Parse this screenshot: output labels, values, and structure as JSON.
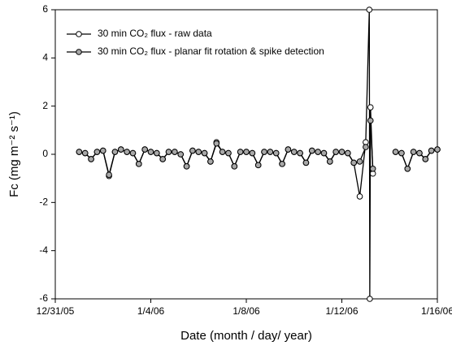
{
  "chart_data": {
    "type": "line",
    "xlabel": "Date (month / day/ year)",
    "ylabel": "Fc (mg m⁻² s⁻¹)",
    "x": [
      1,
      1.25,
      1.5,
      1.75,
      2,
      2.25,
      2.5,
      2.75,
      3,
      3.25,
      3.5,
      3.75,
      4,
      4.25,
      4.5,
      4.75,
      5,
      5.25,
      5.5,
      5.75,
      6,
      6.25,
      6.5,
      6.75,
      7,
      7.25,
      7.5,
      7.75,
      8,
      8.25,
      8.5,
      8.75,
      9,
      9.25,
      9.5,
      9.75,
      10,
      10.25,
      10.5,
      10.75,
      11,
      11.25,
      11.5,
      11.75,
      12,
      12.25,
      12.5,
      12.75,
      13,
      13.15,
      13.17,
      13.2,
      13.3,
      13.4,
      14.25,
      14.5,
      14.75,
      15,
      15.25,
      15.5,
      15.75,
      16
    ],
    "series": [
      {
        "name": "30 min CO₂ flux  - raw data",
        "color": "#ffffff",
        "values": [
          0.1,
          0.05,
          -0.2,
          0.1,
          0.15,
          -0.9,
          0.1,
          0.2,
          0.1,
          0.05,
          -0.4,
          0.2,
          0.1,
          0.05,
          -0.2,
          0.1,
          0.1,
          0,
          -0.5,
          0.15,
          0.1,
          0.05,
          -0.3,
          0.5,
          0.1,
          0.05,
          -0.5,
          0.1,
          0.1,
          0.05,
          -0.45,
          0.1,
          0.1,
          0.05,
          -0.4,
          0.2,
          0.1,
          0.05,
          -0.35,
          0.15,
          0.1,
          0.05,
          -0.3,
          0.1,
          0.1,
          0.05,
          -0.35,
          -1.75,
          0.5,
          6,
          -6,
          1.95,
          -0.8,
          null,
          0.1,
          0.05,
          -0.6,
          0.1,
          0.05,
          -0.2,
          0.15,
          0.2
        ]
      },
      {
        "name": "30 min CO₂ flux  -  planar fit rotation & spike detection",
        "color": "#a8a8a8",
        "values": [
          0.1,
          0.05,
          -0.2,
          0.1,
          0.15,
          -0.85,
          0.1,
          0.2,
          0.1,
          0.05,
          -0.4,
          0.2,
          0.1,
          0.05,
          -0.2,
          0.1,
          0.1,
          0,
          -0.5,
          0.15,
          0.1,
          0.05,
          -0.3,
          0.45,
          0.1,
          0.05,
          -0.5,
          0.1,
          0.1,
          0.05,
          -0.45,
          0.1,
          0.1,
          0.05,
          -0.4,
          0.2,
          0.1,
          0.05,
          -0.35,
          0.15,
          0.1,
          0.05,
          -0.3,
          0.1,
          0.1,
          0.05,
          -0.35,
          -0.3,
          0.3,
          null,
          null,
          1.4,
          -0.6,
          null,
          0.1,
          0.05,
          -0.6,
          0.1,
          0.05,
          -0.2,
          0.15,
          0.2
        ]
      }
    ],
    "xlim": [
      0,
      16
    ],
    "xticks": [
      {
        "value": 0,
        "label": "12/31/05"
      },
      {
        "value": 4,
        "label": "1/4/06"
      },
      {
        "value": 8,
        "label": "1/8/06"
      },
      {
        "value": 12,
        "label": "1/12/06"
      },
      {
        "value": 16,
        "label": "1/16/06"
      }
    ],
    "ylim": [
      -6,
      6
    ],
    "yticks": [
      -6,
      -4,
      -2,
      0,
      2,
      4,
      6
    ],
    "legend": "upper left"
  }
}
